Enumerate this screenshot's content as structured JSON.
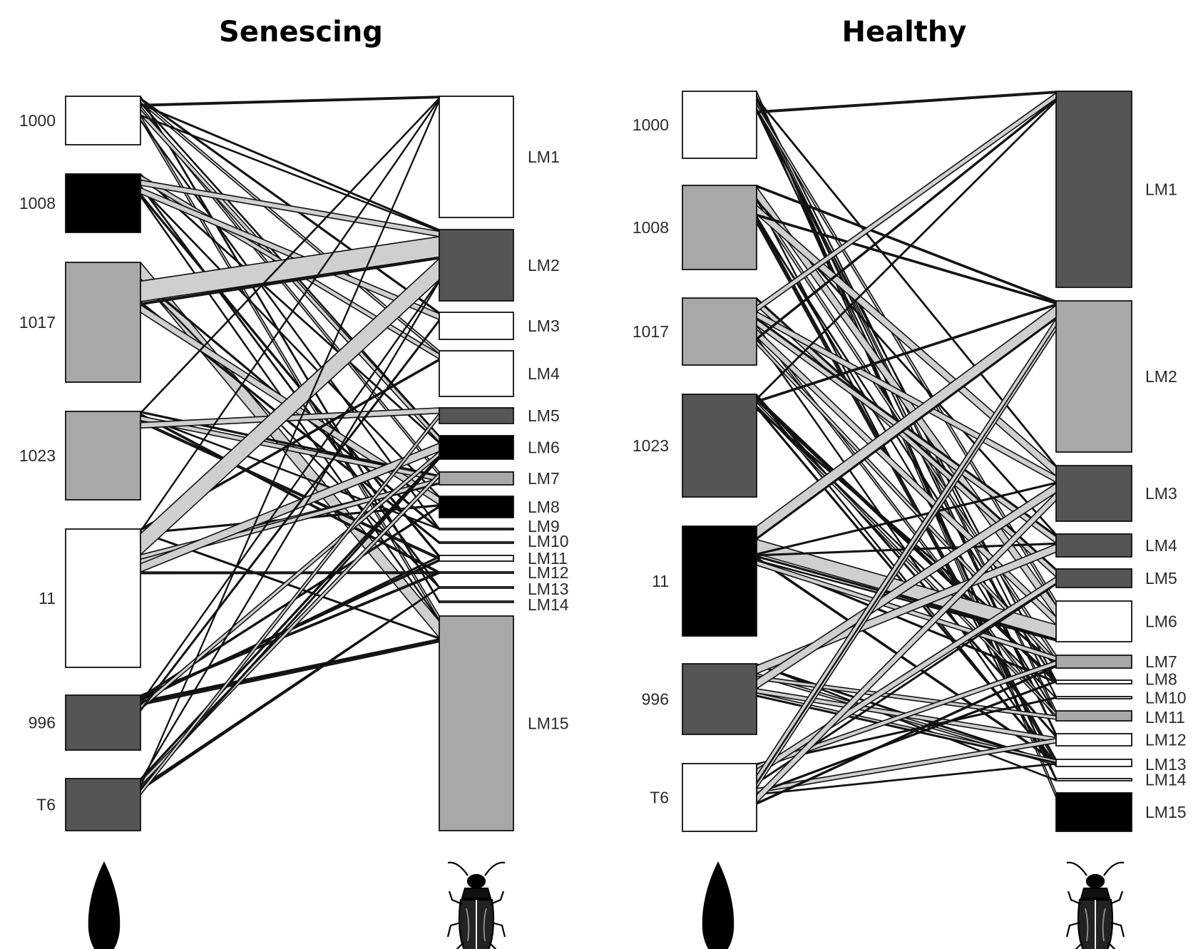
{
  "colors": {
    "white": "#ffffff",
    "light": "#a8a8a8",
    "dark": "#555555",
    "black": "#000000",
    "link": "#cfcfcf"
  },
  "panels": [
    {
      "title": "Senescing",
      "plants": [
        {
          "label": "1000",
          "color": "white"
        },
        {
          "label": "1008",
          "color": "black"
        },
        {
          "label": "1017",
          "color": "light"
        },
        {
          "label": "1023",
          "color": "light"
        },
        {
          "label": "11",
          "color": "white"
        },
        {
          "label": "996",
          "color": "dark"
        },
        {
          "label": "T6",
          "color": "dark"
        }
      ],
      "insects": [
        {
          "label": "LM1",
          "color": "white"
        },
        {
          "label": "LM2",
          "color": "dark"
        },
        {
          "label": "LM3",
          "color": "white"
        },
        {
          "label": "LM4",
          "color": "white"
        },
        {
          "label": "LM5",
          "color": "dark"
        },
        {
          "label": "LM6",
          "color": "black"
        },
        {
          "label": "LM7",
          "color": "light"
        },
        {
          "label": "LM8",
          "color": "black"
        },
        {
          "label": "LM9",
          "color": "white"
        },
        {
          "label": "LM10",
          "color": "white"
        },
        {
          "label": "LM11",
          "color": "white"
        },
        {
          "label": "LM12",
          "color": "white"
        },
        {
          "label": "LM13",
          "color": "white"
        },
        {
          "label": "LM14",
          "color": "white"
        },
        {
          "label": "LM15",
          "color": "light"
        }
      ]
    },
    {
      "title": "Healthy",
      "plants": [
        {
          "label": "1000",
          "color": "white"
        },
        {
          "label": "1008",
          "color": "light"
        },
        {
          "label": "1017",
          "color": "light"
        },
        {
          "label": "1023",
          "color": "dark"
        },
        {
          "label": "11",
          "color": "black"
        },
        {
          "label": "996",
          "color": "dark"
        },
        {
          "label": "T6",
          "color": "white"
        }
      ],
      "insects": [
        {
          "label": "LM1",
          "color": "dark"
        },
        {
          "label": "LM2",
          "color": "light"
        },
        {
          "label": "LM3",
          "color": "dark"
        },
        {
          "label": "LM4",
          "color": "dark"
        },
        {
          "label": "LM5",
          "color": "dark"
        },
        {
          "label": "LM6",
          "color": "white"
        },
        {
          "label": "LM7",
          "color": "light"
        },
        {
          "label": "LM8",
          "color": "white"
        },
        {
          "label": "LM10",
          "color": "white"
        },
        {
          "label": "LM11",
          "color": "light"
        },
        {
          "label": "LM12",
          "color": "white"
        },
        {
          "label": "LM13",
          "color": "white"
        },
        {
          "label": "LM14",
          "color": "white"
        },
        {
          "label": "LM15",
          "color": "black"
        }
      ]
    }
  ],
  "icons": [
    "leaf-icon",
    "beetle-icon"
  ]
}
